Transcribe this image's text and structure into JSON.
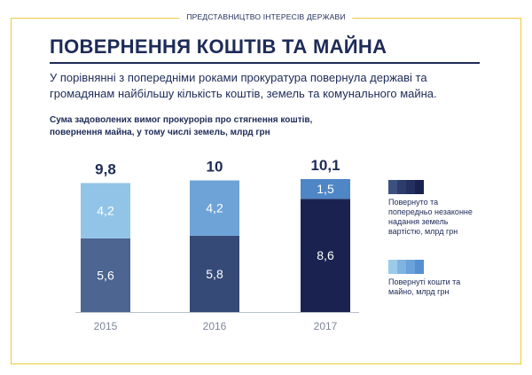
{
  "header": {
    "section": "ПРЕДСТАВНИЦТВО ІНТЕРЕСІВ ДЕРЖАВИ"
  },
  "page": {
    "title": "ПОВЕРНЕННЯ КОШТІВ ТА МАЙНА",
    "subtitle": "У порівнянні з попередніми роками прокуратура повернула державі та громадянам найбільшу кількість коштів, земель та комунального майна.",
    "chart_title": "Сума задоволених вимог прокурорів про стягнення коштів, повернення майна, у тому числі земель, млрд грн"
  },
  "legend": {
    "series_a": {
      "label": "Повернуто та попередньо незаконне надання земель вартістю, млрд грн",
      "colors": [
        "#3d5180",
        "#2d3d6b",
        "#24305e",
        "#1a2350"
      ]
    },
    "series_b": {
      "label": "Повернуті кошти та майно, млрд грн",
      "colors": [
        "#9ccbea",
        "#7fb3e0",
        "#6aa3da",
        "#5590d0"
      ]
    }
  },
  "chart_data": {
    "type": "bar",
    "stacked": true,
    "title": "Сума задоволених вимог прокурорів про стягнення коштів, повернення майна, у тому числі земель, млрд грн",
    "categories": [
      "2015",
      "2016",
      "2017"
    ],
    "totals": [
      "9,8",
      "10",
      "10,1"
    ],
    "series": [
      {
        "name": "Повернуто та попередньо незаконне надання земель вартістю, млрд грн",
        "values": [
          5.6,
          5.8,
          8.6
        ],
        "labels": [
          "5,6",
          "5,8",
          "8,6"
        ],
        "colors": [
          "#4c6591",
          "#364a78",
          "#1a2350"
        ]
      },
      {
        "name": "Повернуті кошти та майно, млрд грн",
        "values": [
          4.2,
          4.2,
          1.5
        ],
        "labels": [
          "4,2",
          "4,2",
          "1,5"
        ],
        "colors": [
          "#92c4e8",
          "#6ea3d8",
          "#4f86c6"
        ]
      }
    ],
    "ylim": [
      0,
      10.1
    ],
    "grid": false,
    "legend_position": "right"
  }
}
